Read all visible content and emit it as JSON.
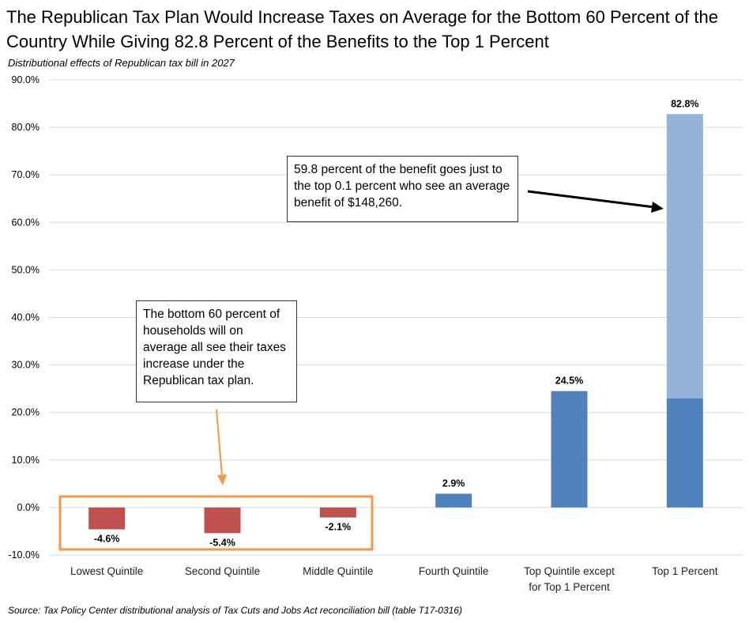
{
  "title": "The Republican Tax Plan Would Increase Taxes on Average for the Bottom 60 Percent of the Country While Giving 82.8 Percent of the Benefits to the Top 1 Percent",
  "subtitle": "Distributional  effects of Republican tax  bill in 2027",
  "source": "Source: Tax Policy Center distributional analysis of Tax Cuts and Jobs Act reconciliation bill (table T17-0316)",
  "annotations": {
    "top": "59.8 percent of the benefit goes just to the top 0.1 percent who see an average benefit of $148,260.",
    "bottom": "The bottom 60 percent of households will on average all see their taxes increase under the Republican tax plan."
  },
  "colors": {
    "negative": "#c0504d",
    "positive": "#4f81bd",
    "top_segment": "#95b3d7",
    "highlight_box": "#f79646",
    "grid": "#d9d9d9"
  },
  "chart_data": {
    "type": "bar",
    "categories": [
      [
        "Lowest Quintile"
      ],
      [
        "Second Quintile"
      ],
      [
        "Middle Quintile"
      ],
      [
        "Fourth Quintile"
      ],
      [
        "Top Quintile except",
        "for Top 1 Percent"
      ],
      [
        "Top 1 Percent"
      ]
    ],
    "values": [
      -4.6,
      -5.4,
      -2.1,
      2.9,
      24.5,
      82.8
    ],
    "data_labels": [
      "-4.6%",
      "-5.4%",
      "-2.1%",
      "2.9%",
      "24.5%",
      "82.8%"
    ],
    "stacked_split": {
      "category_index": 5,
      "top_0_1_percent": 59.8
    },
    "ylim": [
      -10,
      90
    ],
    "yticks": [
      -10,
      0,
      10,
      20,
      30,
      40,
      50,
      60,
      70,
      80,
      90
    ],
    "ytick_labels": [
      "-10.0%",
      "0.0%",
      "10.0%",
      "20.0%",
      "30.0%",
      "40.0%",
      "50.0%",
      "60.0%",
      "70.0%",
      "80.0%",
      "90.0%"
    ],
    "grid": true
  }
}
